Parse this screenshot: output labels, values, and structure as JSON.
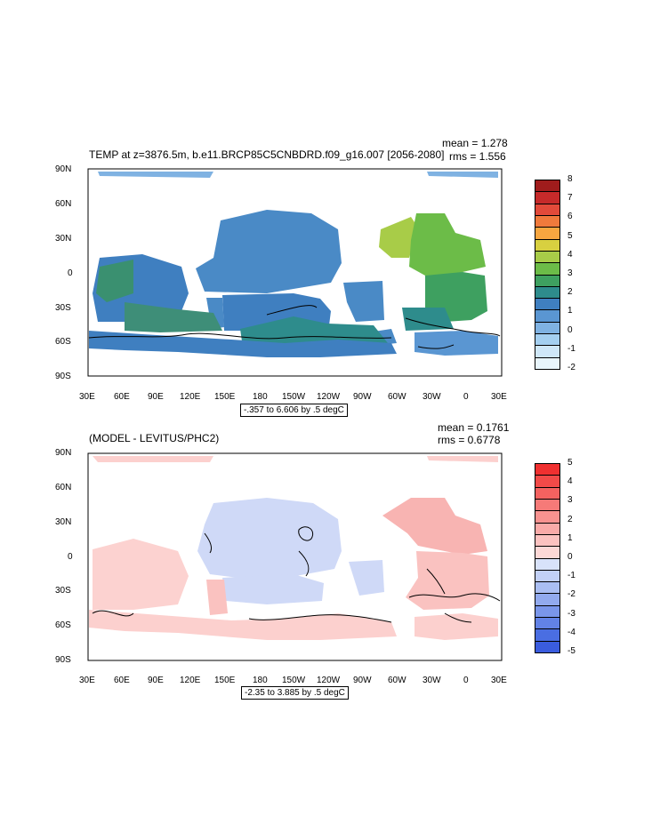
{
  "chart_data": [
    {
      "type": "heatmap",
      "title": "TEMP at z=3876.5m, b.e11.BRCP85C5CNBDRD.f09_g16.007 [2056-2080]",
      "stats": {
        "mean": "mean = 1.278",
        "rms": "rms = 1.556"
      },
      "range_label": "-.357 to 6.606 by .5 degC",
      "x_ticks": [
        "30E",
        "60E",
        "90E",
        "120E",
        "150E",
        "180",
        "150W",
        "120W",
        "90W",
        "60W",
        "30W",
        "0",
        "30E"
      ],
      "y_ticks": [
        "90N",
        "60N",
        "30N",
        "0",
        "30S",
        "60S",
        "90S"
      ],
      "colorbar": {
        "labels": [
          "8",
          "7",
          "6",
          "5",
          "4",
          "3",
          "2",
          "1",
          "0",
          "-1",
          "-2"
        ],
        "colors": [
          "#a01c1c",
          "#c62a2a",
          "#e24a3a",
          "#f07a3c",
          "#f7a640",
          "#d8d040",
          "#a8cc48",
          "#6cbc48",
          "#3ea060",
          "#2e8c8c",
          "#3f7fc0",
          "#5a96d2",
          "#7fb2e2",
          "#a4cff0",
          "#cfe7f8",
          "#e8f5fc"
        ]
      },
      "levels_shown": "continents masked white, ocean bottom temperature ~0-3 degC"
    },
    {
      "type": "heatmap",
      "title": "(MODEL - LEVITUS/PHC2)",
      "stats": {
        "mean": "mean = 0.1761",
        "rms": "rms = 0.6778"
      },
      "range_label": "-2.35 to 3.885 by .5 degC",
      "x_ticks": [
        "30E",
        "60E",
        "90E",
        "120E",
        "150E",
        "180",
        "150W",
        "120W",
        "90W",
        "60W",
        "30W",
        "0",
        "30E"
      ],
      "y_ticks": [
        "90N",
        "60N",
        "30N",
        "0",
        "30S",
        "60S",
        "90S"
      ],
      "colorbar": {
        "labels": [
          "5",
          "4",
          "3",
          "2",
          "1",
          "0",
          "-1",
          "-2",
          "-3",
          "-4",
          "-5"
        ],
        "colors": [
          "#f03030",
          "#f24a48",
          "#f46260",
          "#f67a78",
          "#f89290",
          "#faaaa8",
          "#fcc2c0",
          "#fdd8d6",
          "#d8e2fa",
          "#c2d0f6",
          "#aabef2",
          "#92aaee",
          "#7a96ea",
          "#6282e6",
          "#4a6ee2",
          "#3a5cde"
        ]
      }
    }
  ]
}
